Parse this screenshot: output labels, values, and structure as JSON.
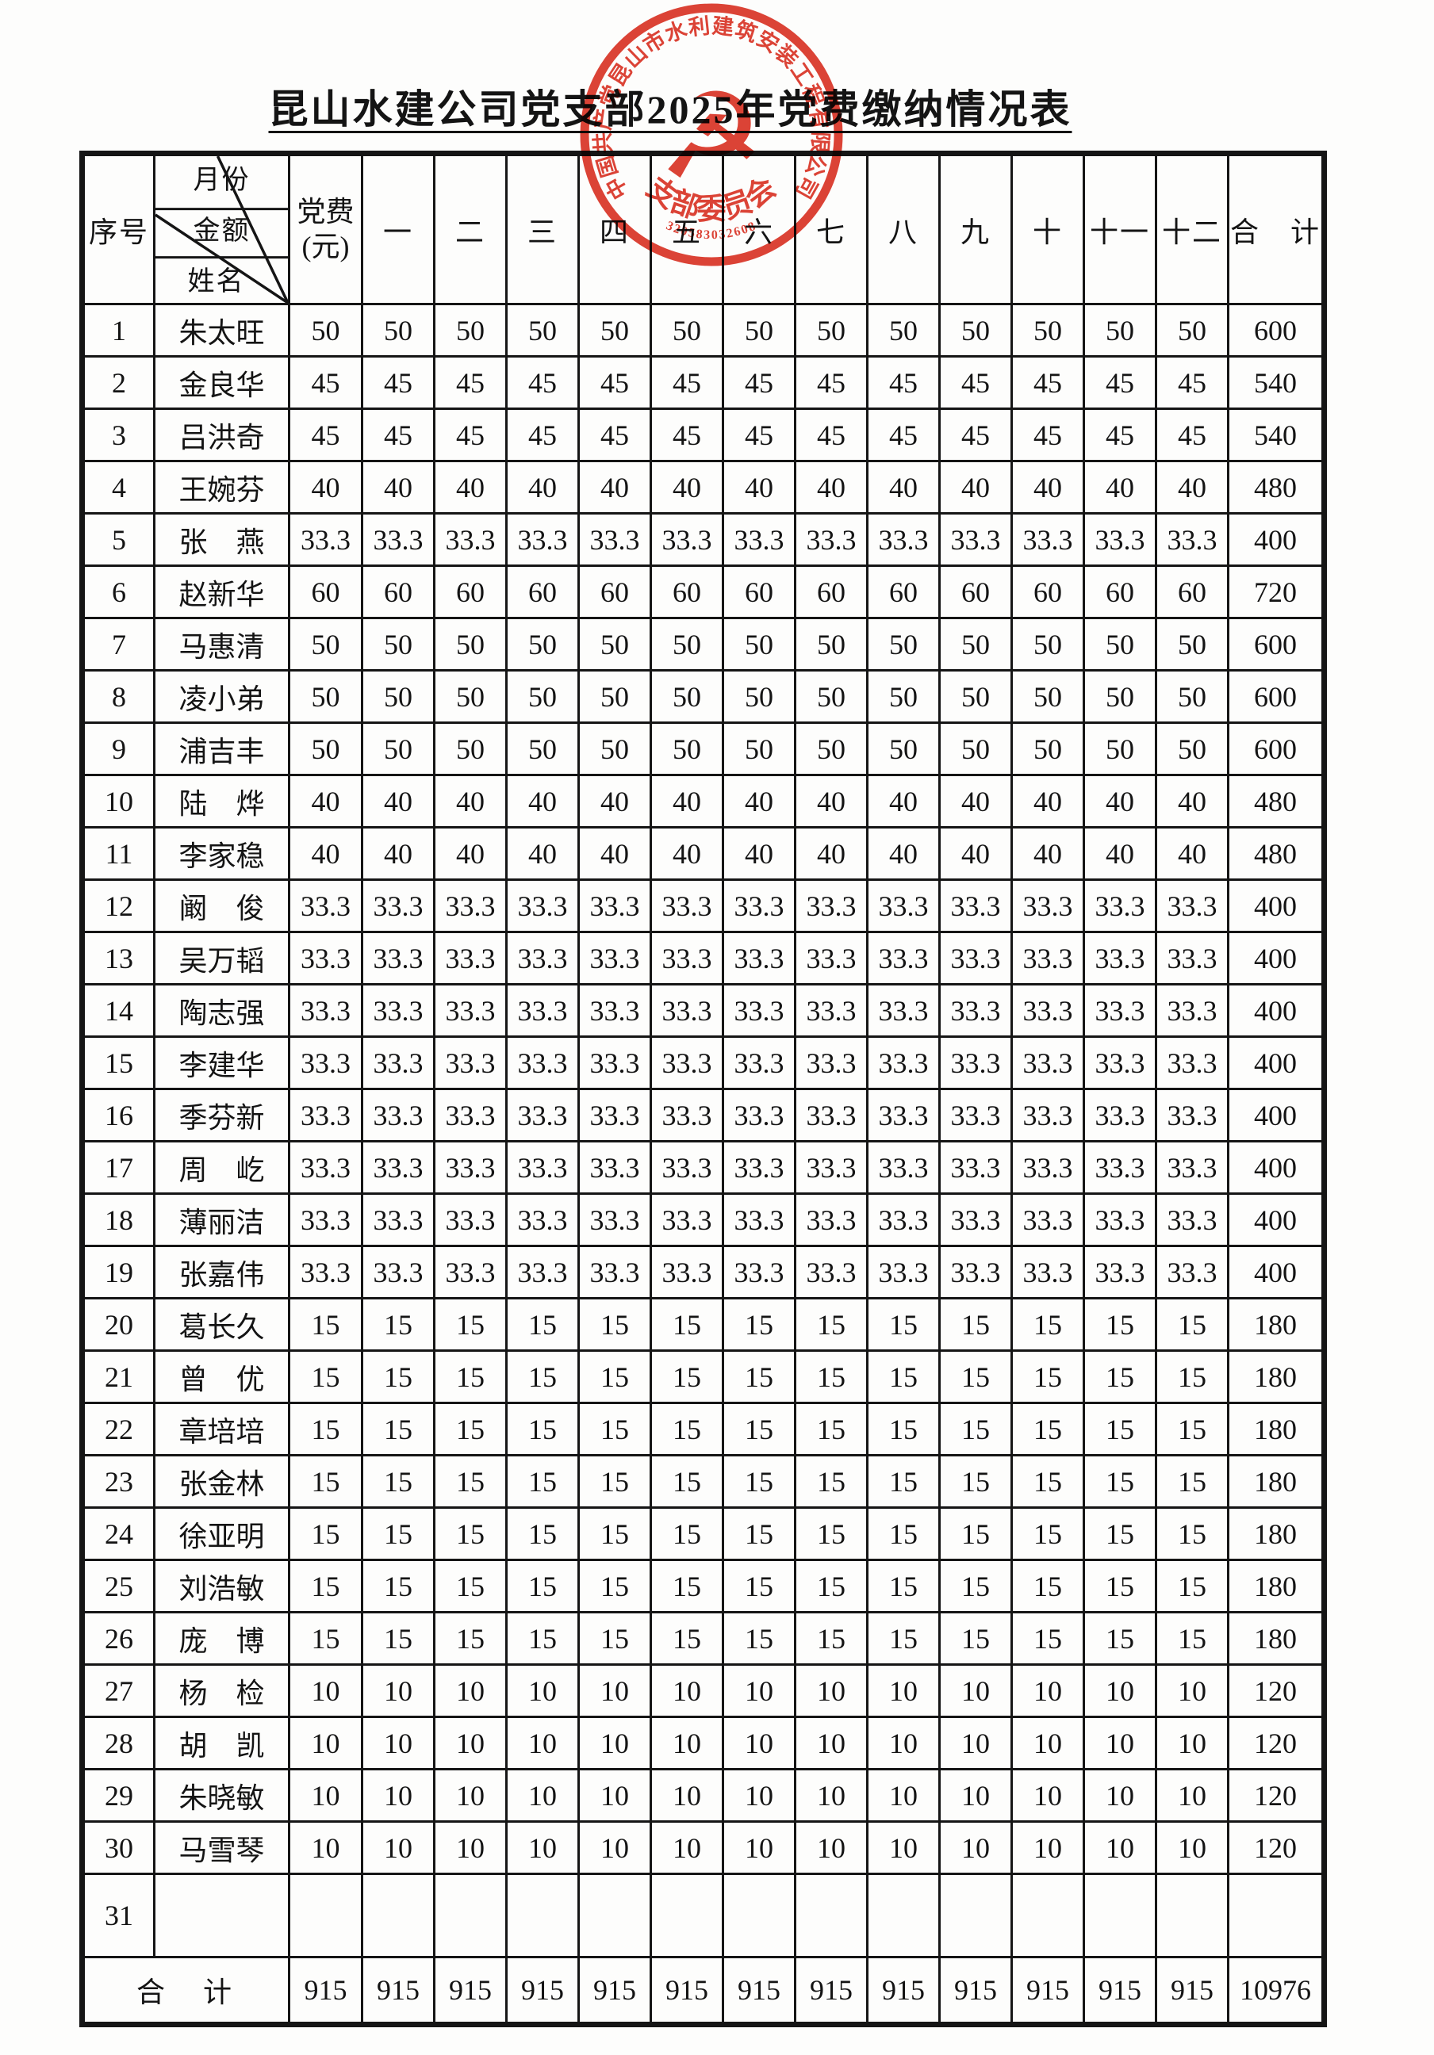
{
  "page": {
    "title": "昆山水建公司党支部2025年党费缴纳情况表"
  },
  "stamp": {
    "ring_text": "中国共产党昆山市水利建筑安装工程有限公司",
    "inner_text": "支部委员会",
    "serial_number": "320583032608",
    "emblem": "hammer-sickle",
    "color": "#d9291a"
  },
  "table": {
    "header": {
      "seq": "序号",
      "diagonal": {
        "top": "月份",
        "middle": "金额",
        "bottom": "姓名"
      },
      "fee_line1": "党费",
      "fee_line2": "(元)",
      "months": [
        "一",
        "二",
        "三",
        "四",
        "五",
        "六",
        "七",
        "八",
        "九",
        "十",
        "十一",
        "十二"
      ],
      "total": "合　计"
    },
    "rows": [
      {
        "seq": "1",
        "name": "朱太旺",
        "fee": "50",
        "months": [
          "50",
          "50",
          "50",
          "50",
          "50",
          "50",
          "50",
          "50",
          "50",
          "50",
          "50",
          "50"
        ],
        "total": "600"
      },
      {
        "seq": "2",
        "name": "金良华",
        "fee": "45",
        "months": [
          "45",
          "45",
          "45",
          "45",
          "45",
          "45",
          "45",
          "45",
          "45",
          "45",
          "45",
          "45"
        ],
        "total": "540"
      },
      {
        "seq": "3",
        "name": "吕洪奇",
        "fee": "45",
        "months": [
          "45",
          "45",
          "45",
          "45",
          "45",
          "45",
          "45",
          "45",
          "45",
          "45",
          "45",
          "45"
        ],
        "total": "540"
      },
      {
        "seq": "4",
        "name": "王婉芬",
        "fee": "40",
        "months": [
          "40",
          "40",
          "40",
          "40",
          "40",
          "40",
          "40",
          "40",
          "40",
          "40",
          "40",
          "40"
        ],
        "total": "480"
      },
      {
        "seq": "5",
        "name": "张　燕",
        "fee": "33.3",
        "months": [
          "33.3",
          "33.3",
          "33.3",
          "33.3",
          "33.3",
          "33.3",
          "33.3",
          "33.3",
          "33.3",
          "33.3",
          "33.3",
          "33.3"
        ],
        "total": "400"
      },
      {
        "seq": "6",
        "name": "赵新华",
        "fee": "60",
        "months": [
          "60",
          "60",
          "60",
          "60",
          "60",
          "60",
          "60",
          "60",
          "60",
          "60",
          "60",
          "60"
        ],
        "total": "720"
      },
      {
        "seq": "7",
        "name": "马惠清",
        "fee": "50",
        "months": [
          "50",
          "50",
          "50",
          "50",
          "50",
          "50",
          "50",
          "50",
          "50",
          "50",
          "50",
          "50"
        ],
        "total": "600"
      },
      {
        "seq": "8",
        "name": "凌小弟",
        "fee": "50",
        "months": [
          "50",
          "50",
          "50",
          "50",
          "50",
          "50",
          "50",
          "50",
          "50",
          "50",
          "50",
          "50"
        ],
        "total": "600"
      },
      {
        "seq": "9",
        "name": "浦吉丰",
        "fee": "50",
        "months": [
          "50",
          "50",
          "50",
          "50",
          "50",
          "50",
          "50",
          "50",
          "50",
          "50",
          "50",
          "50"
        ],
        "total": "600"
      },
      {
        "seq": "10",
        "name": "陆　烨",
        "fee": "40",
        "months": [
          "40",
          "40",
          "40",
          "40",
          "40",
          "40",
          "40",
          "40",
          "40",
          "40",
          "40",
          "40"
        ],
        "total": "480"
      },
      {
        "seq": "11",
        "name": "李家稳",
        "fee": "40",
        "months": [
          "40",
          "40",
          "40",
          "40",
          "40",
          "40",
          "40",
          "40",
          "40",
          "40",
          "40",
          "40"
        ],
        "total": "480"
      },
      {
        "seq": "12",
        "name": "阚　俊",
        "fee": "33.3",
        "months": [
          "33.3",
          "33.3",
          "33.3",
          "33.3",
          "33.3",
          "33.3",
          "33.3",
          "33.3",
          "33.3",
          "33.3",
          "33.3",
          "33.3"
        ],
        "total": "400"
      },
      {
        "seq": "13",
        "name": "吴万韬",
        "fee": "33.3",
        "months": [
          "33.3",
          "33.3",
          "33.3",
          "33.3",
          "33.3",
          "33.3",
          "33.3",
          "33.3",
          "33.3",
          "33.3",
          "33.3",
          "33.3"
        ],
        "total": "400"
      },
      {
        "seq": "14",
        "name": "陶志强",
        "fee": "33.3",
        "months": [
          "33.3",
          "33.3",
          "33.3",
          "33.3",
          "33.3",
          "33.3",
          "33.3",
          "33.3",
          "33.3",
          "33.3",
          "33.3",
          "33.3"
        ],
        "total": "400"
      },
      {
        "seq": "15",
        "name": "李建华",
        "fee": "33.3",
        "months": [
          "33.3",
          "33.3",
          "33.3",
          "33.3",
          "33.3",
          "33.3",
          "33.3",
          "33.3",
          "33.3",
          "33.3",
          "33.3",
          "33.3"
        ],
        "total": "400"
      },
      {
        "seq": "16",
        "name": "季芬新",
        "fee": "33.3",
        "months": [
          "33.3",
          "33.3",
          "33.3",
          "33.3",
          "33.3",
          "33.3",
          "33.3",
          "33.3",
          "33.3",
          "33.3",
          "33.3",
          "33.3"
        ],
        "total": "400"
      },
      {
        "seq": "17",
        "name": "周　屹",
        "fee": "33.3",
        "months": [
          "33.3",
          "33.3",
          "33.3",
          "33.3",
          "33.3",
          "33.3",
          "33.3",
          "33.3",
          "33.3",
          "33.3",
          "33.3",
          "33.3"
        ],
        "total": "400"
      },
      {
        "seq": "18",
        "name": "薄丽洁",
        "fee": "33.3",
        "months": [
          "33.3",
          "33.3",
          "33.3",
          "33.3",
          "33.3",
          "33.3",
          "33.3",
          "33.3",
          "33.3",
          "33.3",
          "33.3",
          "33.3"
        ],
        "total": "400"
      },
      {
        "seq": "19",
        "name": "张嘉伟",
        "fee": "33.3",
        "months": [
          "33.3",
          "33.3",
          "33.3",
          "33.3",
          "33.3",
          "33.3",
          "33.3",
          "33.3",
          "33.3",
          "33.3",
          "33.3",
          "33.3"
        ],
        "total": "400"
      },
      {
        "seq": "20",
        "name": "葛长久",
        "fee": "15",
        "months": [
          "15",
          "15",
          "15",
          "15",
          "15",
          "15",
          "15",
          "15",
          "15",
          "15",
          "15",
          "15"
        ],
        "total": "180"
      },
      {
        "seq": "21",
        "name": "曾　优",
        "fee": "15",
        "months": [
          "15",
          "15",
          "15",
          "15",
          "15",
          "15",
          "15",
          "15",
          "15",
          "15",
          "15",
          "15"
        ],
        "total": "180"
      },
      {
        "seq": "22",
        "name": "章培培",
        "fee": "15",
        "months": [
          "15",
          "15",
          "15",
          "15",
          "15",
          "15",
          "15",
          "15",
          "15",
          "15",
          "15",
          "15"
        ],
        "total": "180"
      },
      {
        "seq": "23",
        "name": "张金林",
        "fee": "15",
        "months": [
          "15",
          "15",
          "15",
          "15",
          "15",
          "15",
          "15",
          "15",
          "15",
          "15",
          "15",
          "15"
        ],
        "total": "180"
      },
      {
        "seq": "24",
        "name": "徐亚明",
        "fee": "15",
        "months": [
          "15",
          "15",
          "15",
          "15",
          "15",
          "15",
          "15",
          "15",
          "15",
          "15",
          "15",
          "15"
        ],
        "total": "180"
      },
      {
        "seq": "25",
        "name": "刘浩敏",
        "fee": "15",
        "months": [
          "15",
          "15",
          "15",
          "15",
          "15",
          "15",
          "15",
          "15",
          "15",
          "15",
          "15",
          "15"
        ],
        "total": "180"
      },
      {
        "seq": "26",
        "name": "庞　博",
        "fee": "15",
        "months": [
          "15",
          "15",
          "15",
          "15",
          "15",
          "15",
          "15",
          "15",
          "15",
          "15",
          "15",
          "15"
        ],
        "total": "180"
      },
      {
        "seq": "27",
        "name": "杨　检",
        "fee": "10",
        "months": [
          "10",
          "10",
          "10",
          "10",
          "10",
          "10",
          "10",
          "10",
          "10",
          "10",
          "10",
          "10"
        ],
        "total": "120"
      },
      {
        "seq": "28",
        "name": "胡　凯",
        "fee": "10",
        "months": [
          "10",
          "10",
          "10",
          "10",
          "10",
          "10",
          "10",
          "10",
          "10",
          "10",
          "10",
          "10"
        ],
        "total": "120"
      },
      {
        "seq": "29",
        "name": "朱晓敏",
        "fee": "10",
        "months": [
          "10",
          "10",
          "10",
          "10",
          "10",
          "10",
          "10",
          "10",
          "10",
          "10",
          "10",
          "10"
        ],
        "total": "120"
      },
      {
        "seq": "30",
        "name": "马雪琴",
        "fee": "10",
        "months": [
          "10",
          "10",
          "10",
          "10",
          "10",
          "10",
          "10",
          "10",
          "10",
          "10",
          "10",
          "10"
        ],
        "total": "120"
      },
      {
        "seq": "31",
        "name": "",
        "fee": "",
        "months": [
          "",
          "",
          "",
          "",
          "",
          "",
          "",
          "",
          "",
          "",
          "",
          ""
        ],
        "total": ""
      }
    ],
    "footer": {
      "label": "合　计",
      "fee": "915",
      "months": [
        "915",
        "915",
        "915",
        "915",
        "915",
        "915",
        "915",
        "915",
        "915",
        "915",
        "915",
        "915"
      ],
      "grand_total": "10976"
    }
  }
}
